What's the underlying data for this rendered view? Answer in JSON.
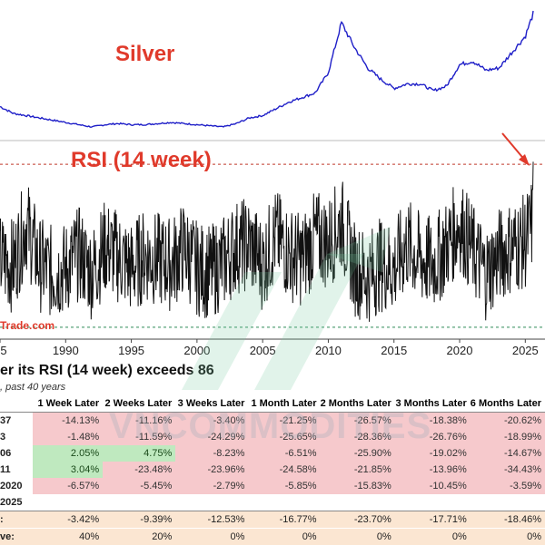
{
  "chart_data": [
    {
      "type": "line",
      "title": "Silver",
      "series": [
        {
          "x": [
            1985,
            1986,
            1987,
            1988,
            1989,
            1990,
            1991,
            1992,
            1993,
            1994,
            1995,
            1996,
            1997,
            1998,
            1999,
            2000,
            2001,
            2002,
            2003,
            2004,
            2005,
            2006,
            2007,
            2008,
            2009,
            2010,
            2011,
            2012,
            2013,
            2014,
            2015,
            2016,
            2017,
            2018,
            2019,
            2020,
            2021,
            2022,
            2023,
            2024,
            2025,
            2025.6
          ],
          "values": [
            0.18,
            0.12,
            0.1,
            0.08,
            0.06,
            0.04,
            0.02,
            0.0,
            0.02,
            0.03,
            0.02,
            0.02,
            0.03,
            0.04,
            0.03,
            0.02,
            0.01,
            0.0,
            0.03,
            0.08,
            0.1,
            0.16,
            0.22,
            0.26,
            0.3,
            0.48,
            0.92,
            0.7,
            0.52,
            0.42,
            0.34,
            0.38,
            0.38,
            0.32,
            0.36,
            0.55,
            0.58,
            0.5,
            0.52,
            0.66,
            0.8,
            1.0
          ]
        }
      ]
    },
    {
      "type": "line",
      "title": "RSI (14 week)",
      "series": [
        {
          "x": [
            1985,
            1986,
            1987,
            1988,
            1989,
            1990,
            1991,
            1992,
            1993,
            1994,
            1995,
            1996,
            1997,
            1998,
            1999,
            2000,
            2001,
            2002,
            2003,
            2004,
            2005,
            2006,
            2007,
            2008,
            2009,
            2010,
            2011,
            2012,
            2013,
            2014,
            2015,
            2016,
            2017,
            2018,
            2019,
            2020,
            2021,
            2022,
            2023,
            2024,
            2025,
            2025.6
          ],
          "values": [
            45,
            38,
            86,
            40,
            30,
            34,
            52,
            30,
            60,
            48,
            35,
            50,
            45,
            40,
            58,
            35,
            30,
            42,
            60,
            62,
            40,
            72,
            52,
            45,
            70,
            64,
            87,
            35,
            25,
            40,
            35,
            62,
            45,
            40,
            60,
            86,
            55,
            30,
            50,
            60,
            65,
            87
          ]
        }
      ]
    }
  ],
  "x_ticks": [
    "5",
    "1990",
    "1995",
    "2000",
    "2005",
    "2010",
    "2015",
    "2020",
    "2025"
  ],
  "labels": {
    "silver": "Silver",
    "rsi": "RSI (14 week)",
    "source": "Trade.com",
    "watermark": "VNCOMMODITIES"
  },
  "colors": {
    "silver_line": "#1f1fc8",
    "rsi_line": "#111111",
    "title": "#e03a2b",
    "threshold": "#c0392b",
    "low_line": "#2e8b57"
  },
  "table": {
    "title": "er its RSI (14 week) exceeds 86",
    "subtitle": ", past 40 years",
    "headers": [
      "",
      "1 Week Later",
      "2 Weeks Later",
      "3 Weeks Later",
      "1 Month Later",
      "2 Months Later",
      "3 Months Later",
      "6 Months Later"
    ],
    "rows": [
      {
        "label": "37",
        "values": [
          "-14.13%",
          "-11.16%",
          "-3.40%",
          "-21.25%",
          "-26.57%",
          "-18.38%",
          "-20.62%"
        ],
        "signs": [
          "neg",
          "neg",
          "neg",
          "neg",
          "neg",
          "neg",
          "neg"
        ]
      },
      {
        "label": "3",
        "values": [
          "-1.48%",
          "-11.59%",
          "-24.29%",
          "-25.65%",
          "-28.36%",
          "-26.76%",
          "-18.99%"
        ],
        "signs": [
          "neg",
          "neg",
          "neg",
          "neg",
          "neg",
          "neg",
          "neg"
        ]
      },
      {
        "label": "06",
        "values": [
          "2.05%",
          "4.75%",
          "-8.23%",
          "-6.51%",
          "-25.90%",
          "-19.02%",
          "-14.67%"
        ],
        "signs": [
          "pos",
          "pos",
          "neg",
          "neg",
          "neg",
          "neg",
          "neg"
        ]
      },
      {
        "label": "11",
        "values": [
          "3.04%",
          "-23.48%",
          "-23.96%",
          "-24.58%",
          "-21.85%",
          "-13.96%",
          "-34.43%"
        ],
        "signs": [
          "pos",
          "neg",
          "neg",
          "neg",
          "neg",
          "neg",
          "neg"
        ]
      },
      {
        "label": "2020",
        "values": [
          "-6.57%",
          "-5.45%",
          "-2.79%",
          "-5.85%",
          "-15.83%",
          "-10.45%",
          "-3.59%"
        ],
        "signs": [
          "neg",
          "neg",
          "neg",
          "neg",
          "neg",
          "neg",
          "neg"
        ]
      },
      {
        "label": "2025",
        "values": [
          "",
          "",
          "",
          "",
          "",
          "",
          ""
        ],
        "signs": [
          "",
          "",
          "",
          "",
          "",
          "",
          ""
        ]
      }
    ],
    "summary": [
      {
        "label": ":",
        "values": [
          "-3.42%",
          "-9.39%",
          "-12.53%",
          "-16.77%",
          "-23.70%",
          "-17.71%",
          "-18.46%"
        ]
      },
      {
        "label": "ve:",
        "values": [
          "40%",
          "20%",
          "0%",
          "0%",
          "0%",
          "0%",
          "0%"
        ]
      }
    ]
  }
}
